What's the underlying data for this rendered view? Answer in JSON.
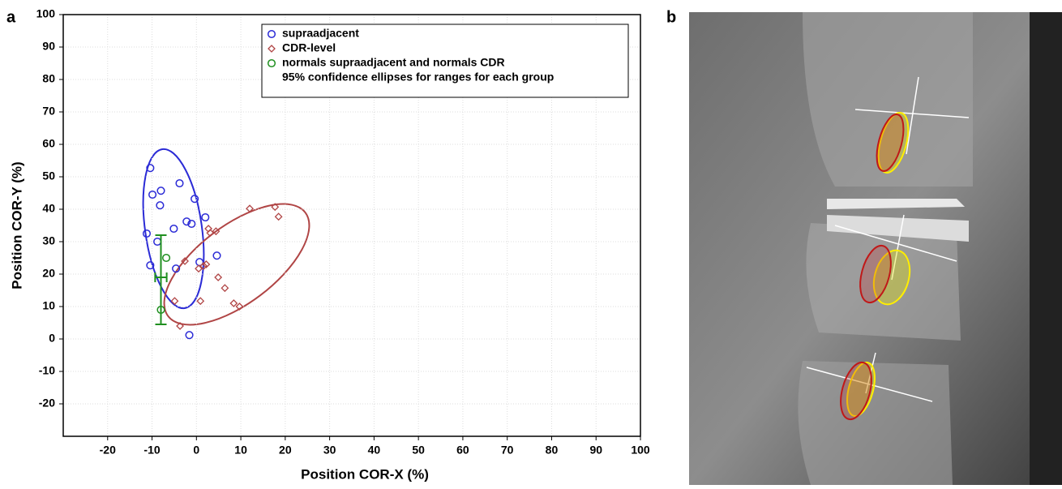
{
  "panel_labels": [
    "a",
    "b"
  ],
  "chart_data": {
    "type": "scatter",
    "xlabel": "Position COR-X (%)",
    "ylabel": "Position COR-Y (%)",
    "xlim": [
      -30,
      100
    ],
    "ylim": [
      -30,
      100
    ],
    "xticks": [
      -20,
      -10,
      0,
      10,
      20,
      30,
      40,
      50,
      60,
      70,
      80,
      90,
      100
    ],
    "yticks": [
      -20,
      -10,
      0,
      10,
      20,
      30,
      40,
      50,
      60,
      70,
      80,
      90,
      100
    ],
    "grid": true,
    "legend": "upper right",
    "legend_note": "95% confidence ellipses for ranges for each group",
    "series": [
      {
        "name": "supraadjacent",
        "color": "#2b2bd6",
        "marker": "circle",
        "x": [
          -10.4,
          -9.9,
          -8,
          -8.2,
          -3.8,
          -0.4,
          -2.2,
          -1.1,
          2,
          -5.1,
          -11.2,
          -8.8,
          -10.4,
          -4.6,
          0.7,
          4.6,
          -1.6
        ],
        "values": [
          52.7,
          44.5,
          45.7,
          41.2,
          48,
          43.2,
          36.2,
          35.5,
          37.5,
          34,
          32.5,
          30,
          22.7,
          21.7,
          23.7,
          25.7,
          1.2
        ]
      },
      {
        "name": "CDR-level",
        "color": "#b04545",
        "marker": "diamond",
        "x": [
          12,
          17.7,
          18.5,
          2.7,
          4.4,
          3.1,
          -2.6,
          1.6,
          0.5,
          2.2,
          4.9,
          6.4,
          -4.9,
          0.9,
          8.4,
          9.7,
          -3.7
        ],
        "values": [
          40.2,
          40.7,
          37.7,
          34,
          33.2,
          32.7,
          24,
          22.5,
          21.7,
          23,
          19,
          15.7,
          11.7,
          11.7,
          11,
          10,
          4
        ]
      },
      {
        "name": "normals supraadjacent and normals CDR",
        "color": "#1f8f1f",
        "marker": "circle",
        "x": [
          -6.8,
          -8
        ],
        "values": [
          25,
          9
        ]
      }
    ],
    "error_bar": {
      "x": -8,
      "y": 19,
      "ylow": 4.5,
      "yhigh": 32,
      "xlow": -9.3,
      "xhigh": -6.7
    }
  }
}
